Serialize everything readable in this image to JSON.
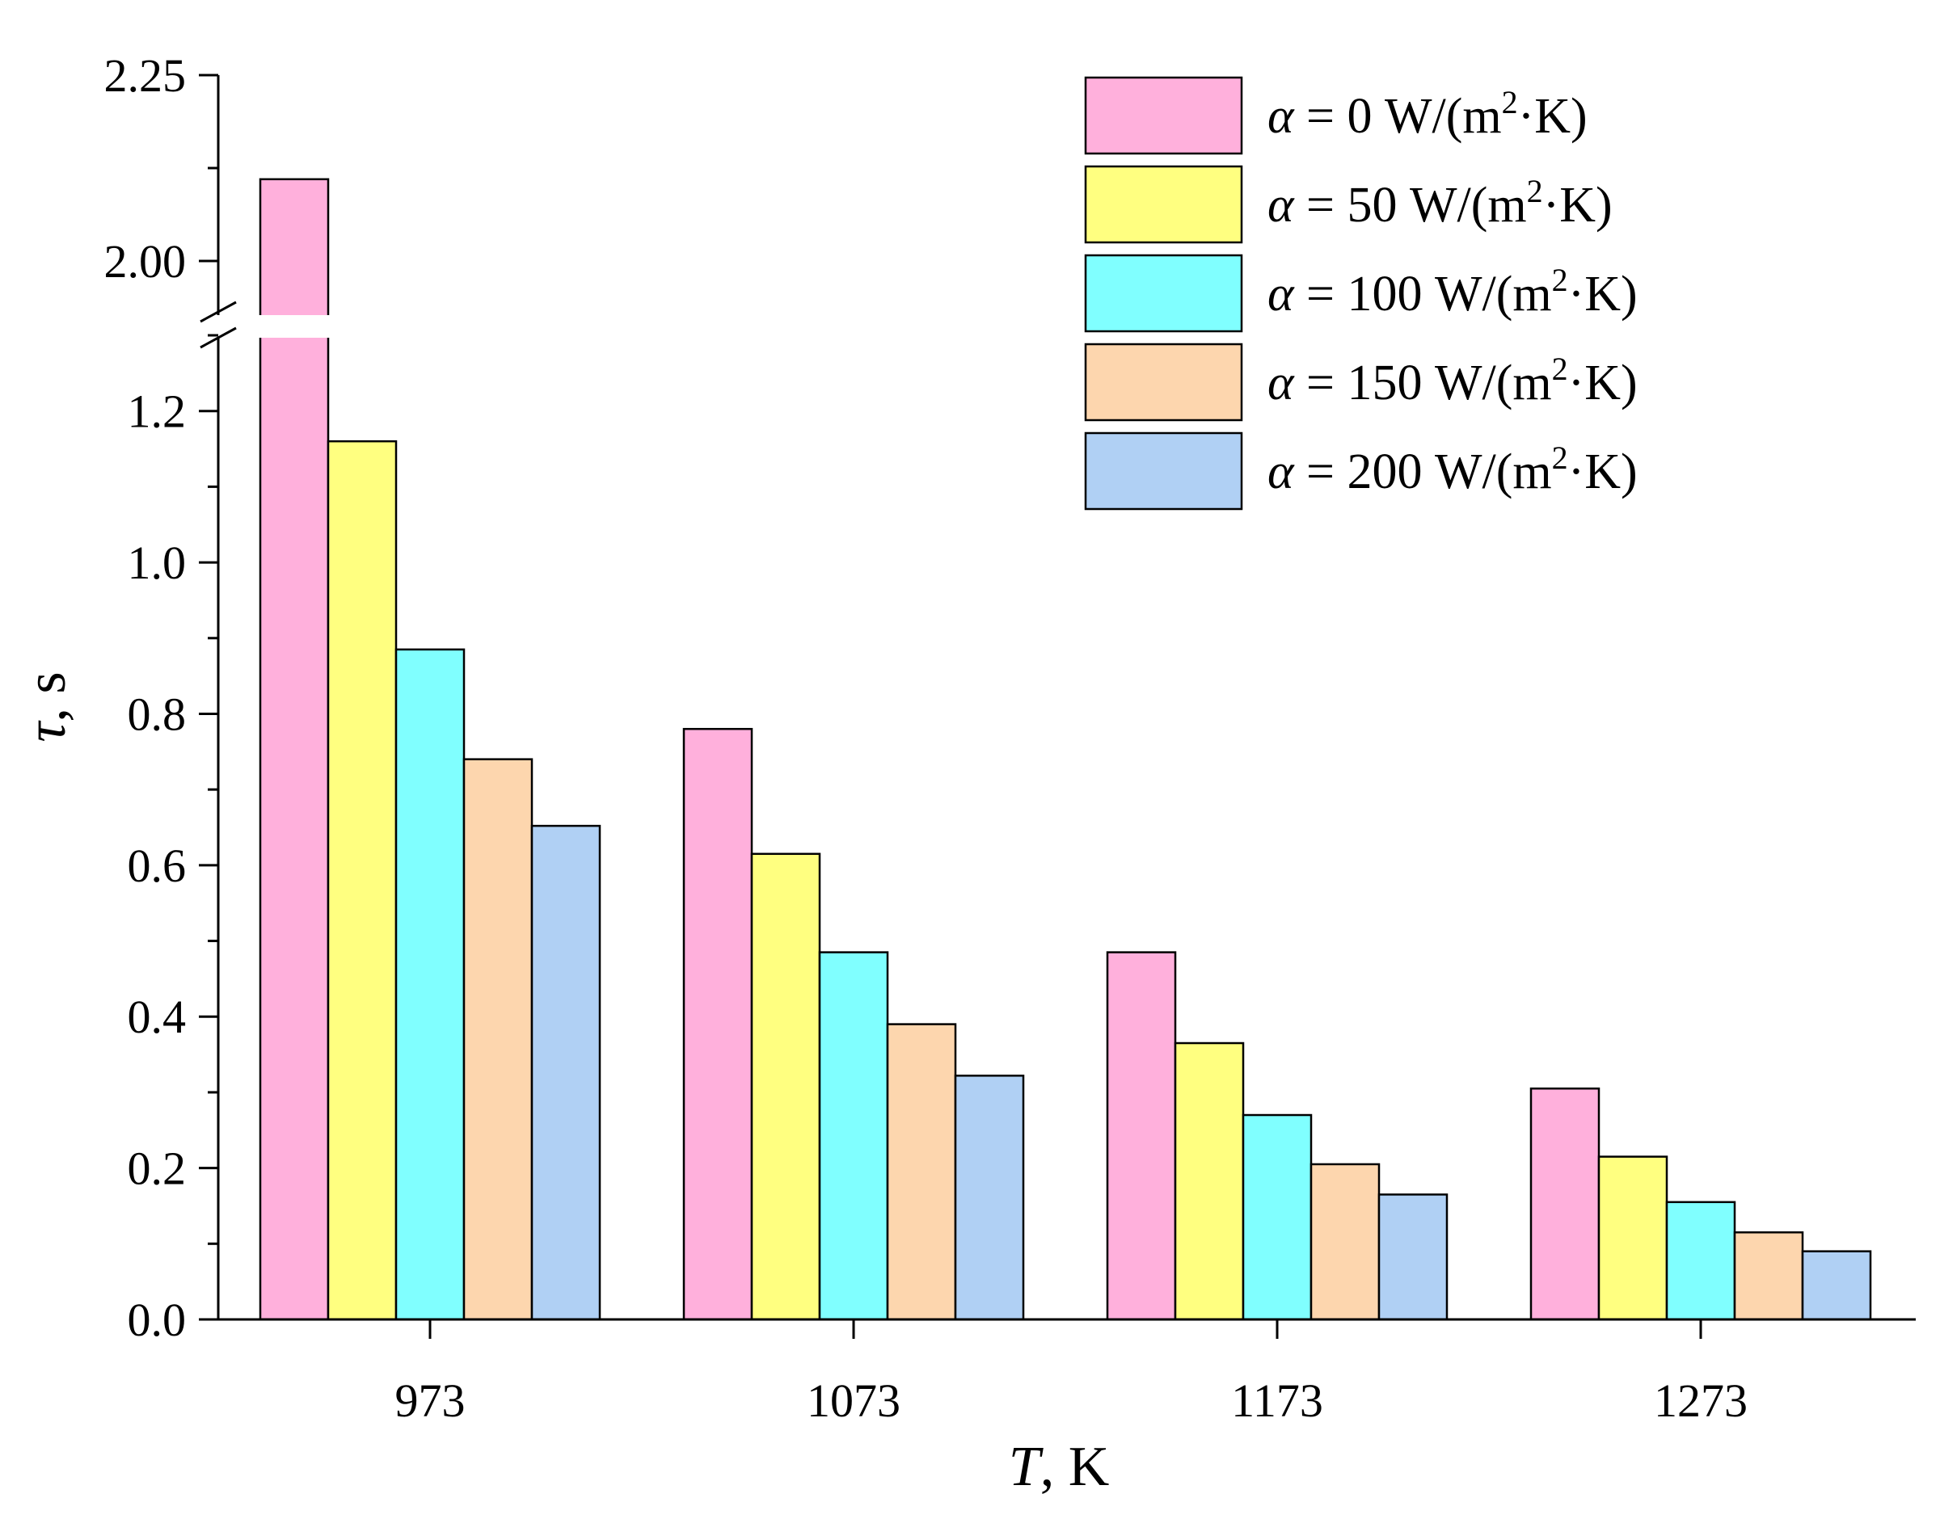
{
  "chart_data": {
    "type": "bar",
    "title": "",
    "xlabel": "T, K",
    "xlabel_symbol": "T",
    "xlabel_unit": ", K",
    "ylabel": "τ, s",
    "ylabel_symbol": "τ",
    "ylabel_unit": ", s",
    "categories": [
      "973",
      "1073",
      "1173",
      "1273"
    ],
    "series": [
      {
        "name": "α = 0 W/(m²·K)",
        "prefix": "α",
        "label": " = 0 W/(m",
        "sup": "2",
        "suffix": "·K)",
        "color": "#ffb0dc",
        "values": [
          2.11,
          0.78,
          0.485,
          0.305
        ]
      },
      {
        "name": "α = 50 W/(m²·K)",
        "prefix": "α",
        "label": " = 50 W/(m",
        "sup": "2",
        "suffix": "·K)",
        "color": "#ffff80",
        "values": [
          1.16,
          0.615,
          0.365,
          0.215
        ]
      },
      {
        "name": "α = 100 W/(m²·K)",
        "prefix": "α",
        "label": " = 100 W/(m",
        "sup": "2",
        "suffix": "·K)",
        "color": "#80ffff",
        "values": [
          0.885,
          0.485,
          0.27,
          0.155
        ]
      },
      {
        "name": "α = 150 W/(m²·K)",
        "prefix": "α",
        "label": " = 150 W/(m",
        "sup": "2",
        "suffix": "·K)",
        "color": "#fdd6ae",
        "values": [
          0.74,
          0.39,
          0.205,
          0.115
        ]
      },
      {
        "name": "α = 200 W/(m²·K)",
        "prefix": "α",
        "label": " = 200 W/(m",
        "sup": "2",
        "suffix": "·K)",
        "color": "#b0d0f4",
        "values": [
          0.652,
          0.322,
          0.165,
          0.09
        ]
      }
    ],
    "y_axis": {
      "lower_range": [
        0,
        1.3
      ],
      "lower_ticks": [
        "0.0",
        "0.2",
        "0.4",
        "0.6",
        "0.8",
        "1.0",
        "1.2"
      ],
      "upper_range": [
        1.9,
        2.25
      ],
      "upper_ticks": [
        "2.00",
        "2.25"
      ],
      "broken": true
    },
    "legend": "top-right",
    "grid": false
  }
}
